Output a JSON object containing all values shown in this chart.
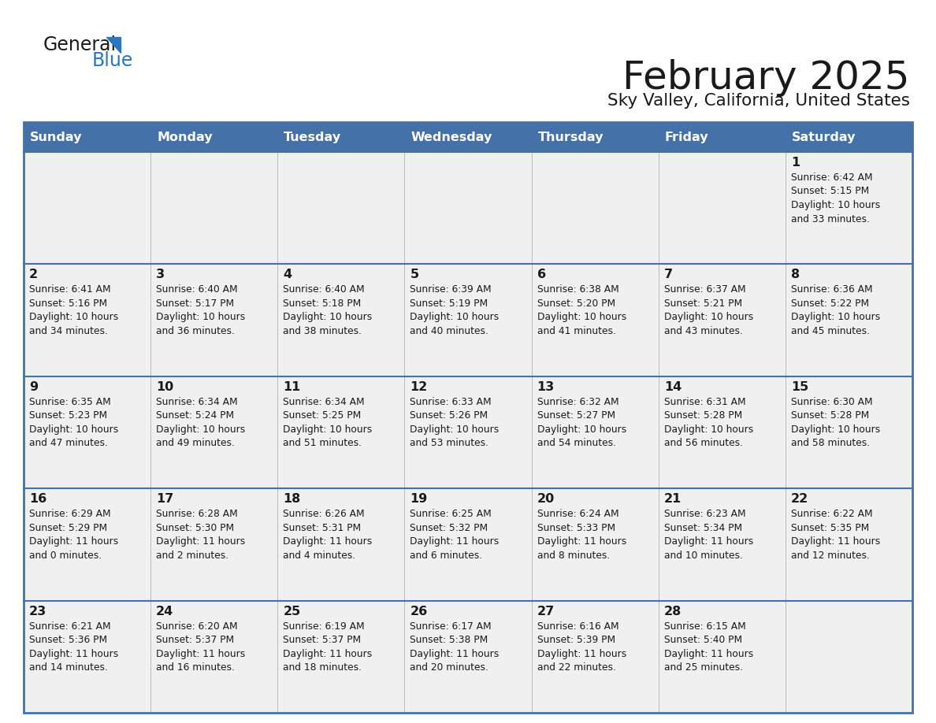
{
  "title": "February 2025",
  "subtitle": "Sky Valley, California, United States",
  "header_bg": "#4472A8",
  "header_text": "#FFFFFF",
  "cell_bg": "#F0F0F0",
  "border_color": "#4472A8",
  "day_headers": [
    "Sunday",
    "Monday",
    "Tuesday",
    "Wednesday",
    "Thursday",
    "Friday",
    "Saturday"
  ],
  "title_color": "#1a1a1a",
  "subtitle_color": "#1a1a1a",
  "day_num_color": "#1a1a1a",
  "info_color": "#1a1a1a",
  "logo_general_color": "#1a1a1a",
  "logo_blue_color": "#2878C0",
  "logo_triangle_color": "#2878C0",
  "calendar_data": [
    [
      null,
      null,
      null,
      null,
      null,
      null,
      {
        "day": 1,
        "sunrise": "6:42 AM",
        "sunset": "5:15 PM",
        "daylight": "10 hours and 33 minutes."
      }
    ],
    [
      {
        "day": 2,
        "sunrise": "6:41 AM",
        "sunset": "5:16 PM",
        "daylight": "10 hours and 34 minutes."
      },
      {
        "day": 3,
        "sunrise": "6:40 AM",
        "sunset": "5:17 PM",
        "daylight": "10 hours and 36 minutes."
      },
      {
        "day": 4,
        "sunrise": "6:40 AM",
        "sunset": "5:18 PM",
        "daylight": "10 hours and 38 minutes."
      },
      {
        "day": 5,
        "sunrise": "6:39 AM",
        "sunset": "5:19 PM",
        "daylight": "10 hours and 40 minutes."
      },
      {
        "day": 6,
        "sunrise": "6:38 AM",
        "sunset": "5:20 PM",
        "daylight": "10 hours and 41 minutes."
      },
      {
        "day": 7,
        "sunrise": "6:37 AM",
        "sunset": "5:21 PM",
        "daylight": "10 hours and 43 minutes."
      },
      {
        "day": 8,
        "sunrise": "6:36 AM",
        "sunset": "5:22 PM",
        "daylight": "10 hours and 45 minutes."
      }
    ],
    [
      {
        "day": 9,
        "sunrise": "6:35 AM",
        "sunset": "5:23 PM",
        "daylight": "10 hours and 47 minutes."
      },
      {
        "day": 10,
        "sunrise": "6:34 AM",
        "sunset": "5:24 PM",
        "daylight": "10 hours and 49 minutes."
      },
      {
        "day": 11,
        "sunrise": "6:34 AM",
        "sunset": "5:25 PM",
        "daylight": "10 hours and 51 minutes."
      },
      {
        "day": 12,
        "sunrise": "6:33 AM",
        "sunset": "5:26 PM",
        "daylight": "10 hours and 53 minutes."
      },
      {
        "day": 13,
        "sunrise": "6:32 AM",
        "sunset": "5:27 PM",
        "daylight": "10 hours and 54 minutes."
      },
      {
        "day": 14,
        "sunrise": "6:31 AM",
        "sunset": "5:28 PM",
        "daylight": "10 hours and 56 minutes."
      },
      {
        "day": 15,
        "sunrise": "6:30 AM",
        "sunset": "5:28 PM",
        "daylight": "10 hours and 58 minutes."
      }
    ],
    [
      {
        "day": 16,
        "sunrise": "6:29 AM",
        "sunset": "5:29 PM",
        "daylight": "11 hours and 0 minutes."
      },
      {
        "day": 17,
        "sunrise": "6:28 AM",
        "sunset": "5:30 PM",
        "daylight": "11 hours and 2 minutes."
      },
      {
        "day": 18,
        "sunrise": "6:26 AM",
        "sunset": "5:31 PM",
        "daylight": "11 hours and 4 minutes."
      },
      {
        "day": 19,
        "sunrise": "6:25 AM",
        "sunset": "5:32 PM",
        "daylight": "11 hours and 6 minutes."
      },
      {
        "day": 20,
        "sunrise": "6:24 AM",
        "sunset": "5:33 PM",
        "daylight": "11 hours and 8 minutes."
      },
      {
        "day": 21,
        "sunrise": "6:23 AM",
        "sunset": "5:34 PM",
        "daylight": "11 hours and 10 minutes."
      },
      {
        "day": 22,
        "sunrise": "6:22 AM",
        "sunset": "5:35 PM",
        "daylight": "11 hours and 12 minutes."
      }
    ],
    [
      {
        "day": 23,
        "sunrise": "6:21 AM",
        "sunset": "5:36 PM",
        "daylight": "11 hours and 14 minutes."
      },
      {
        "day": 24,
        "sunrise": "6:20 AM",
        "sunset": "5:37 PM",
        "daylight": "11 hours and 16 minutes."
      },
      {
        "day": 25,
        "sunrise": "6:19 AM",
        "sunset": "5:37 PM",
        "daylight": "11 hours and 18 minutes."
      },
      {
        "day": 26,
        "sunrise": "6:17 AM",
        "sunset": "5:38 PM",
        "daylight": "11 hours and 20 minutes."
      },
      {
        "day": 27,
        "sunrise": "6:16 AM",
        "sunset": "5:39 PM",
        "daylight": "11 hours and 22 minutes."
      },
      {
        "day": 28,
        "sunrise": "6:15 AM",
        "sunset": "5:40 PM",
        "daylight": "11 hours and 25 minutes."
      },
      null
    ]
  ]
}
